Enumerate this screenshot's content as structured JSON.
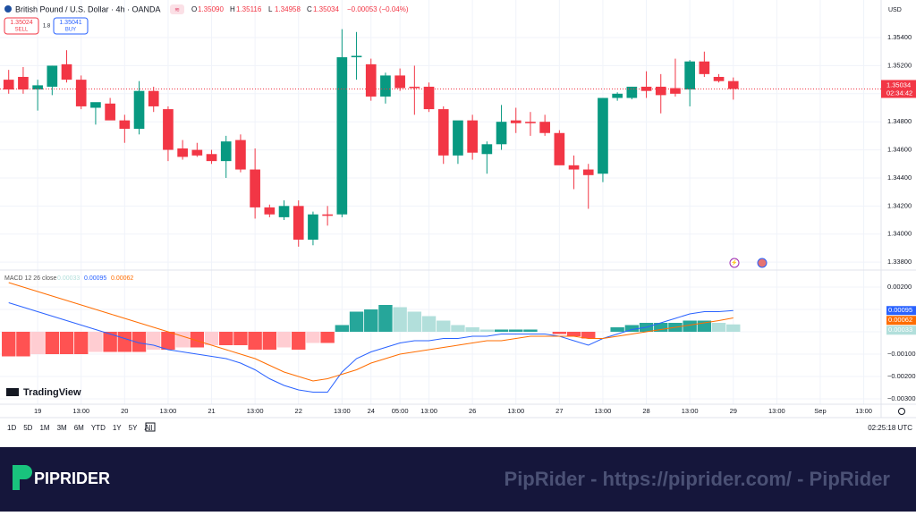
{
  "header": {
    "symbol": "British Pound / U.S. Dollar · 4h · OANDA",
    "ohlc": [
      {
        "key": "O",
        "value": "1.35090"
      },
      {
        "key": "H",
        "value": "1.35116"
      },
      {
        "key": "L",
        "value": "1.34958"
      },
      {
        "key": "C",
        "value": "1.35034"
      }
    ],
    "change": "−0.00053 (−0.04%)",
    "sell_price": "1.35024",
    "sell": "SELL",
    "spread": "1.8",
    "buy_price": "1.35041",
    "buy": "BUY",
    "currency": "USD"
  },
  "chart_data": [
    {
      "type": "candlestick",
      "countdown": "02:34:42",
      "up_color": "#089981",
      "down_color": "#f23645",
      "grid": true,
      "xlim": [
        -0.6,
        60.2
      ],
      "xticks": [
        {
          "value": 2,
          "label": "19"
        },
        {
          "value": 5,
          "label": "13:00"
        },
        {
          "value": 8,
          "label": "20"
        },
        {
          "value": 11,
          "label": "13:00"
        },
        {
          "value": 14,
          "label": "21"
        },
        {
          "value": 17,
          "label": "13:00"
        },
        {
          "value": 20,
          "label": "22"
        },
        {
          "value": 23,
          "label": "13:00"
        },
        {
          "value": 25,
          "label": "24"
        },
        {
          "value": 27,
          "label": "05:00"
        },
        {
          "value": 29,
          "label": "13:00"
        },
        {
          "value": 32,
          "label": "26"
        },
        {
          "value": 35,
          "label": "13:00"
        },
        {
          "value": 38,
          "label": "27"
        },
        {
          "value": 41,
          "label": "13:00"
        },
        {
          "value": 44,
          "label": "28"
        },
        {
          "value": 47,
          "label": "13:00"
        },
        {
          "value": 50,
          "label": "29"
        },
        {
          "value": 53,
          "label": "13:00"
        },
        {
          "value": 56,
          "label": "Sep"
        },
        {
          "value": 59,
          "label": "13:00"
        }
      ],
      "ylim": [
        1.33756,
        1.35668
      ],
      "yticks": [
        {
          "value": 1.338,
          "label": "1.33800"
        },
        {
          "value": 1.34,
          "label": "1.34000"
        },
        {
          "value": 1.342,
          "label": "1.34200"
        },
        {
          "value": 1.344,
          "label": "1.34400"
        },
        {
          "value": 1.346,
          "label": "1.34600"
        },
        {
          "value": 1.348,
          "label": "1.34800"
        },
        {
          "value": 1.35,
          "label": "1.35000"
        },
        {
          "value": 1.352,
          "label": "1.35200"
        },
        {
          "value": 1.354,
          "label": "1.35400"
        }
      ],
      "open": [
        1.351,
        1.3512,
        1.3503,
        1.3505,
        1.3521,
        1.351,
        1.349,
        1.3493,
        1.3481,
        1.3475,
        1.3502,
        1.3489,
        1.3461,
        1.346,
        1.3457,
        1.3452,
        1.3467,
        1.3446,
        1.3419,
        1.3412,
        1.342,
        1.3396,
        1.3414,
        1.3414,
        1.3526,
        1.3521,
        1.3498,
        1.3513,
        1.3505,
        1.3505,
        1.3489,
        1.3456,
        1.3481,
        1.3457,
        1.3464,
        1.3481,
        1.348,
        1.348,
        1.3472,
        1.3449,
        1.3446,
        1.3443,
        1.3497,
        1.3497,
        1.3505,
        1.3505,
        1.3504,
        1.3503,
        1.3523,
        1.3512,
        1.3509
      ],
      "high": [
        1.3517,
        1.3519,
        1.351,
        1.352,
        1.3531,
        1.3513,
        1.3493,
        1.3497,
        1.3485,
        1.3509,
        1.3505,
        1.3491,
        1.3467,
        1.3465,
        1.346,
        1.347,
        1.3471,
        1.3461,
        1.3421,
        1.3424,
        1.3424,
        1.3416,
        1.342,
        1.3546,
        1.3544,
        1.3525,
        1.3515,
        1.3518,
        1.352,
        1.3508,
        1.3491,
        1.348,
        1.3485,
        1.3466,
        1.3492,
        1.349,
        1.3487,
        1.3485,
        1.3474,
        1.3456,
        1.345,
        1.3497,
        1.3501,
        1.3505,
        1.3516,
        1.3514,
        1.3525,
        1.3524,
        1.353,
        1.3514,
        1.35116
      ],
      "low": [
        1.35,
        1.35,
        1.3488,
        1.3499,
        1.3508,
        1.3489,
        1.3478,
        1.3482,
        1.3465,
        1.3471,
        1.3487,
        1.3452,
        1.3453,
        1.3455,
        1.345,
        1.344,
        1.3444,
        1.3411,
        1.3412,
        1.341,
        1.3391,
        1.3392,
        1.3406,
        1.3412,
        1.351,
        1.3495,
        1.3493,
        1.3502,
        1.3485,
        1.3487,
        1.345,
        1.345,
        1.3453,
        1.3443,
        1.346,
        1.3472,
        1.347,
        1.347,
        1.345,
        1.3432,
        1.3418,
        1.3437,
        1.3495,
        1.3496,
        1.3497,
        1.3486,
        1.3498,
        1.3491,
        1.3512,
        1.3508,
        1.34958
      ],
      "close": [
        1.3503,
        1.3503,
        1.3506,
        1.352,
        1.351,
        1.3491,
        1.3494,
        1.3481,
        1.3475,
        1.3502,
        1.3491,
        1.346,
        1.3455,
        1.3456,
        1.3452,
        1.3466,
        1.3446,
        1.3419,
        1.3414,
        1.342,
        1.3396,
        1.3414,
        1.3413,
        1.3526,
        1.3527,
        1.3498,
        1.3513,
        1.3504,
        1.3504,
        1.3489,
        1.3456,
        1.3481,
        1.3458,
        1.3464,
        1.348,
        1.3479,
        1.3479,
        1.3472,
        1.3449,
        1.3446,
        1.3442,
        1.3497,
        1.35,
        1.3505,
        1.3502,
        1.3499,
        1.35,
        1.3523,
        1.3514,
        1.3509,
        1.35034
      ]
    },
    {
      "type": "macd",
      "title": "MACD 12 26 close",
      "grid": true,
      "xlim": [
        -0.6,
        60.2
      ],
      "ylim": [
        -0.00324,
        0.00272
      ],
      "yticks": [
        {
          "value": 0.002,
          "label": "0.00200"
        },
        {
          "value": 0.001,
          "label": "0.00100"
        },
        {
          "value": 0,
          "label": "0.00000"
        },
        {
          "value": -0.001,
          "label": "−0.00100"
        },
        {
          "value": -0.002,
          "label": "−0.00200"
        },
        {
          "value": -0.003,
          "label": "−0.00300"
        }
      ],
      "histogram": {
        "name": "Histogram",
        "colors": {
          "up_rising": "#26a69a",
          "up_falling": "#b2dfdb",
          "down_falling": "#ff5252",
          "down_rising": "#ffcdd2"
        },
        "values": [
          -0.0011,
          -0.0011,
          -0.001,
          -0.001,
          -0.001,
          -0.001,
          -0.0009,
          -0.0009,
          -0.0009,
          -0.0009,
          -0.0008,
          -0.0008,
          -0.0007,
          -0.0007,
          -0.0006,
          -0.0006,
          -0.0006,
          -0.0008,
          -0.0008,
          -0.0007,
          -0.0008,
          -0.0005,
          -0.0005,
          0.0003,
          0.0009,
          0.001,
          0.0012,
          0.0011,
          0.0009,
          0.0007,
          0.0005,
          0.0003,
          0.0002,
          0.0001,
          0.0001,
          0.0001,
          0.0001,
          0,
          -0.0001,
          -0.0002,
          -0.0003,
          0,
          0.0002,
          0.0003,
          0.0004,
          0.0004,
          0.0004,
          0.0005,
          0.0005,
          0.0004,
          0.00033
        ]
      },
      "series": [
        {
          "name": "MACD",
          "color": "#2962ff",
          "values": [
            0.0013,
            0.0011,
            0.0009,
            0.0007,
            0.0005,
            0.0003,
            0.0001,
            -0.0001,
            -0.0003,
            -0.0005,
            -0.0006,
            -0.0008,
            -0.0009,
            -0.001,
            -0.0011,
            -0.0012,
            -0.0014,
            -0.0017,
            -0.0021,
            -0.0024,
            -0.0026,
            -0.0027,
            -0.0027,
            -0.0018,
            -0.0012,
            -0.0009,
            -0.0007,
            -0.0005,
            -0.0004,
            -0.0004,
            -0.0003,
            -0.0003,
            -0.0002,
            -0.0002,
            -0.0001,
            -0.0001,
            -0.0001,
            -0.0001,
            -0.0002,
            -0.0004,
            -0.0006,
            -0.0003,
            -0.0001,
            0.0001,
            0.0002,
            0.0004,
            0.0006,
            0.0008,
            0.0009,
            0.0009,
            0.00095
          ]
        },
        {
          "name": "Signal",
          "color": "#ff6d00",
          "values": [
            0.0022,
            0.002,
            0.0018,
            0.0016,
            0.0014,
            0.0012,
            0.001,
            0.0008,
            0.0006,
            0.0004,
            0.0002,
            0,
            -0.0002,
            -0.0004,
            -0.0006,
            -0.0008,
            -0.001,
            -0.0012,
            -0.0015,
            -0.0018,
            -0.002,
            -0.0022,
            -0.0021,
            -0.0019,
            -0.0017,
            -0.0014,
            -0.0012,
            -0.001,
            -0.0009,
            -0.0008,
            -0.0007,
            -0.0006,
            -0.0005,
            -0.0004,
            -0.0004,
            -0.0003,
            -0.0002,
            -0.0002,
            -0.0002,
            -0.0002,
            -0.0003,
            -0.0003,
            -0.0002,
            -0.0001,
            0,
            0.0001,
            0.0002,
            0.0003,
            0.0004,
            0.0005,
            0.00062
          ]
        }
      ]
    }
  ],
  "logo": "TradingView",
  "toolbar": {
    "ranges": [
      "1D",
      "5D",
      "1M",
      "3M",
      "6M",
      "YTD",
      "1Y",
      "5Y",
      "All"
    ],
    "clock": "02:25:18 UTC"
  },
  "banner": {
    "brand": "PIPRIDER",
    "watermark": "PipRider - https://piprider.com/ - PipRider"
  }
}
